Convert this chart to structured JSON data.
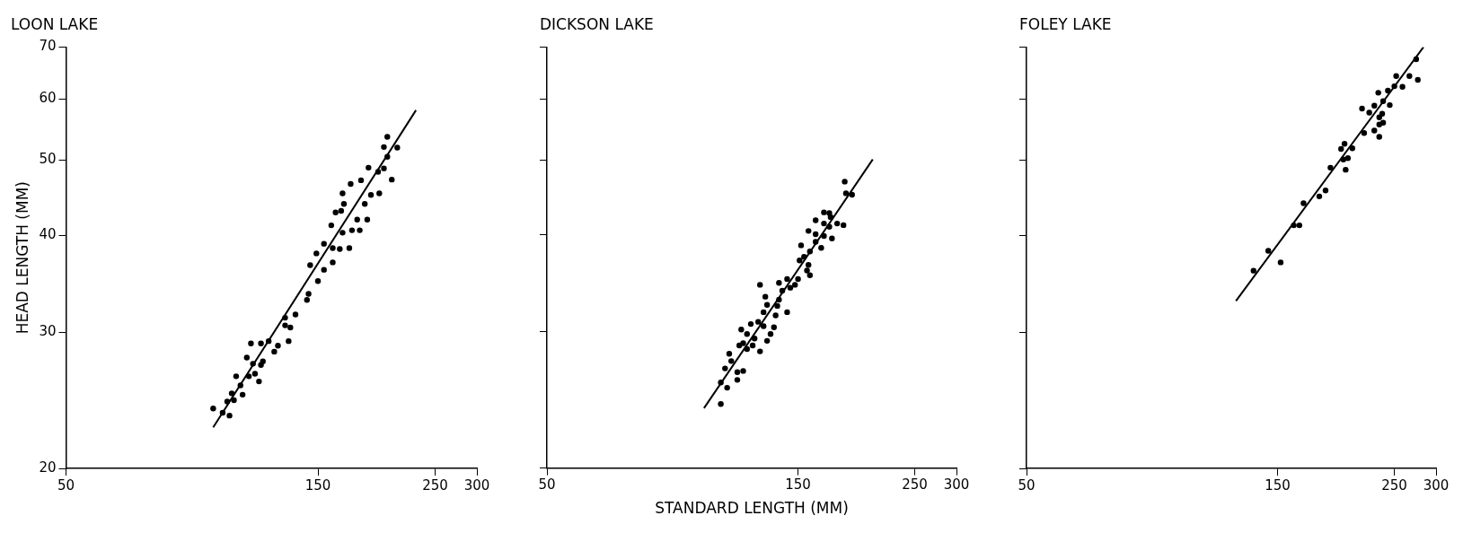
{
  "chart_data": [
    {
      "type": "scatter",
      "title": "LOON LAKE",
      "ylabel": "HEAD LENGTH (MM)",
      "xlim": [
        50,
        300
      ],
      "ylim": [
        20,
        70
      ],
      "xticks": [
        50,
        150,
        250,
        300
      ],
      "yticks": [
        20,
        30,
        40,
        50,
        60,
        70
      ],
      "log": "xy",
      "grid": false,
      "legend": false,
      "marker": "circle",
      "series": [
        {
          "color": "#000000",
          "x": [
            95,
            102,
            99,
            101,
            104,
            103,
            108,
            107,
            105,
            111,
            116,
            114,
            110,
            113,
            117,
            118,
            112,
            117,
            121,
            124,
            126,
            132,
            130,
            133,
            136,
            130,
            143,
            144,
            150,
            145,
            149,
            154,
            160,
            154,
            160,
            165,
            172,
            159,
            167,
            162,
            166,
            168,
            174,
            180,
            178,
            186,
            167,
            173,
            181,
            184,
            189,
            196,
            187,
            195,
            200,
            207,
            203,
            200,
            212,
            203
          ],
          "values": [
            23.9,
            23.4,
            23.6,
            24.4,
            24.5,
            25.0,
            24.9,
            25.6,
            26.3,
            26.3,
            25.9,
            26.5,
            27.8,
            27.3,
            27.2,
            27.5,
            29.0,
            29.0,
            29.2,
            28.3,
            28.8,
            29.2,
            30.6,
            30.4,
            31.6,
            31.3,
            33.0,
            33.6,
            34.9,
            36.6,
            37.9,
            36.1,
            36.9,
            39.0,
            38.5,
            38.4,
            38.5,
            41.2,
            40.3,
            42.8,
            43.0,
            43.9,
            40.6,
            40.6,
            41.9,
            41.9,
            45.3,
            46.6,
            47.1,
            43.9,
            45.1,
            45.3,
            48.9,
            48.3,
            48.8,
            47.2,
            50.5,
            52.0,
            51.9,
            53.6
          ]
        },
        {
          "type": "line",
          "color": "#000000",
          "marker": "none",
          "x": [
            95,
            230
          ],
          "values": [
            22.6,
            58
          ]
        }
      ]
    },
    {
      "type": "scatter",
      "title": "DICKSON LAKE",
      "xlabel": "STANDARD LENGTH (MM)",
      "xlim": [
        50,
        300
      ],
      "ylim": [
        20,
        70
      ],
      "xticks": [
        50,
        150,
        250,
        300
      ],
      "yticks": [
        20,
        30,
        40,
        50,
        60,
        70
      ],
      "log": "xy",
      "grid": false,
      "legend": false,
      "marker": "circle",
      "tick_labels": "x",
      "series": [
        {
          "color": "#000000",
          "x": [
            107,
            110,
            107,
            115,
            115,
            109,
            112,
            118,
            111,
            116,
            120,
            118,
            123,
            124,
            120,
            127,
            117,
            122,
            126,
            129,
            131,
            133,
            135,
            129,
            131,
            136,
            137,
            130,
            138,
            143,
            140,
            127,
            143,
            138,
            148,
            150,
            145,
            151,
            154,
            156,
            158,
            157,
            152,
            158,
            162,
            166,
            157,
            162,
            168,
            162,
            168,
            172,
            168,
            173,
            178,
            183,
            172,
            185,
            190,
            184,
            174
          ],
          "values": [
            24.2,
            25.4,
            25.8,
            26.0,
            26.6,
            26.9,
            27.5,
            26.7,
            28.1,
            28.8,
            28.5,
            29.0,
            28.8,
            29.4,
            29.8,
            28.3,
            30.2,
            30.7,
            30.9,
            30.5,
            29.2,
            29.8,
            30.4,
            31.8,
            32.5,
            31.5,
            32.4,
            33.3,
            33.0,
            31.8,
            33.9,
            34.5,
            35.1,
            34.7,
            34.5,
            35.1,
            34.2,
            37.1,
            37.5,
            36.0,
            35.5,
            36.6,
            38.8,
            38.1,
            39.2,
            38.5,
            40.5,
            40.1,
            39.9,
            41.8,
            41.4,
            41.0,
            42.8,
            42.2,
            41.4,
            41.2,
            42.7,
            45.3,
            45.1,
            46.9,
            39.6
          ]
        },
        {
          "type": "line",
          "color": "#000000",
          "marker": "none",
          "x": [
            99.4,
            208
          ],
          "values": [
            23.9,
            50.1
          ]
        }
      ]
    },
    {
      "type": "scatter",
      "title": "FOLEY LAKE",
      "xlim": [
        50,
        300
      ],
      "ylim": [
        20,
        70
      ],
      "xticks": [
        50,
        150,
        250,
        300
      ],
      "yticks": [
        20,
        30,
        40,
        50,
        60,
        70
      ],
      "log": "xy",
      "grid": false,
      "legend": false,
      "marker": "circle",
      "tick_labels": "x",
      "series": [
        {
          "color": "#000000",
          "x": [
            135,
            144,
            152,
            161,
            165,
            168,
            180,
            185,
            189,
            198,
            201,
            200,
            204,
            202,
            208,
            217,
            224,
            229,
            233,
            234,
            237,
            234,
            238,
            229,
            234,
            219,
            238,
            243,
            245,
            250,
            252,
            259,
            267,
            277,
            275
          ],
          "values": [
            36.0,
            38.2,
            36.9,
            41.2,
            41.2,
            44.0,
            44.9,
            45.7,
            48.9,
            51.7,
            52.5,
            50.1,
            50.3,
            48.6,
            51.8,
            58.3,
            57.6,
            58.8,
            61.1,
            56.8,
            57.4,
            55.6,
            55.9,
            54.6,
            53.6,
            54.2,
            59.6,
            61.5,
            58.9,
            62.3,
            64.2,
            62.2,
            64.2,
            63.5,
            67.5
          ]
        },
        {
          "type": "line",
          "color": "#000000",
          "marker": "none",
          "x": [
            125,
            284
          ],
          "values": [
            32.9,
            70
          ]
        }
      ]
    }
  ]
}
